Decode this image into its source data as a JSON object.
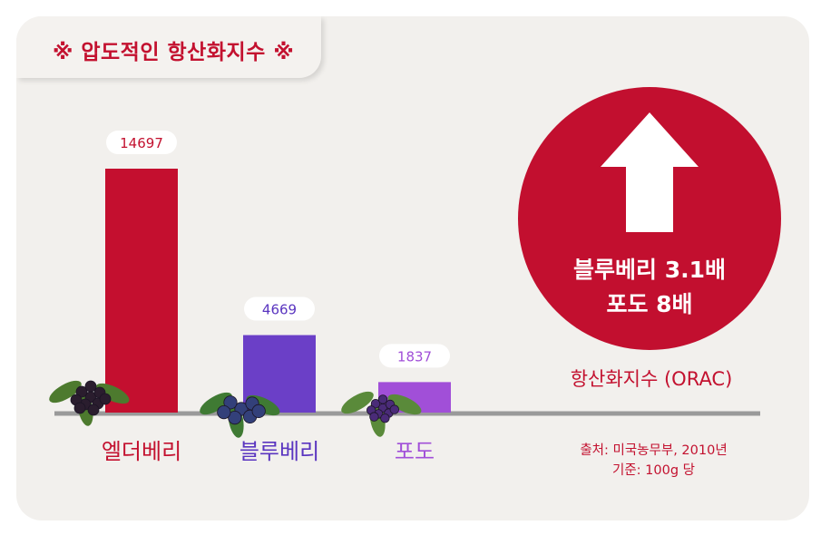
{
  "title": "※ 압도적인 항산화지수 ※",
  "chart_data": {
    "type": "bar",
    "categories": [
      "엘더베리",
      "블루베리",
      "포도"
    ],
    "values": [
      14697,
      4669,
      1837
    ],
    "value_labels": [
      "14697",
      "4669",
      "1837"
    ],
    "bar_colors": [
      "#c40f2f",
      "#6b3fc7",
      "#a14fd8"
    ],
    "label_colors": [
      "#c3112f",
      "#5a35c0",
      "#a14fd8"
    ],
    "ylim": [
      0,
      14697
    ],
    "grid": false
  },
  "callout": {
    "line1": "블루베리 3.1배",
    "line2": "포도 8배",
    "arrow_icon": "up-arrow-icon"
  },
  "metric_label": "항산화지수 (ORAC)",
  "source": {
    "line1": "출처: 미국농무부, 2010년",
    "line2": "기준: 100g 당"
  },
  "colors": {
    "accent_red": "#c20f2f",
    "card_bg": "#f2f0ed",
    "baseline": "#9a9a9a"
  }
}
